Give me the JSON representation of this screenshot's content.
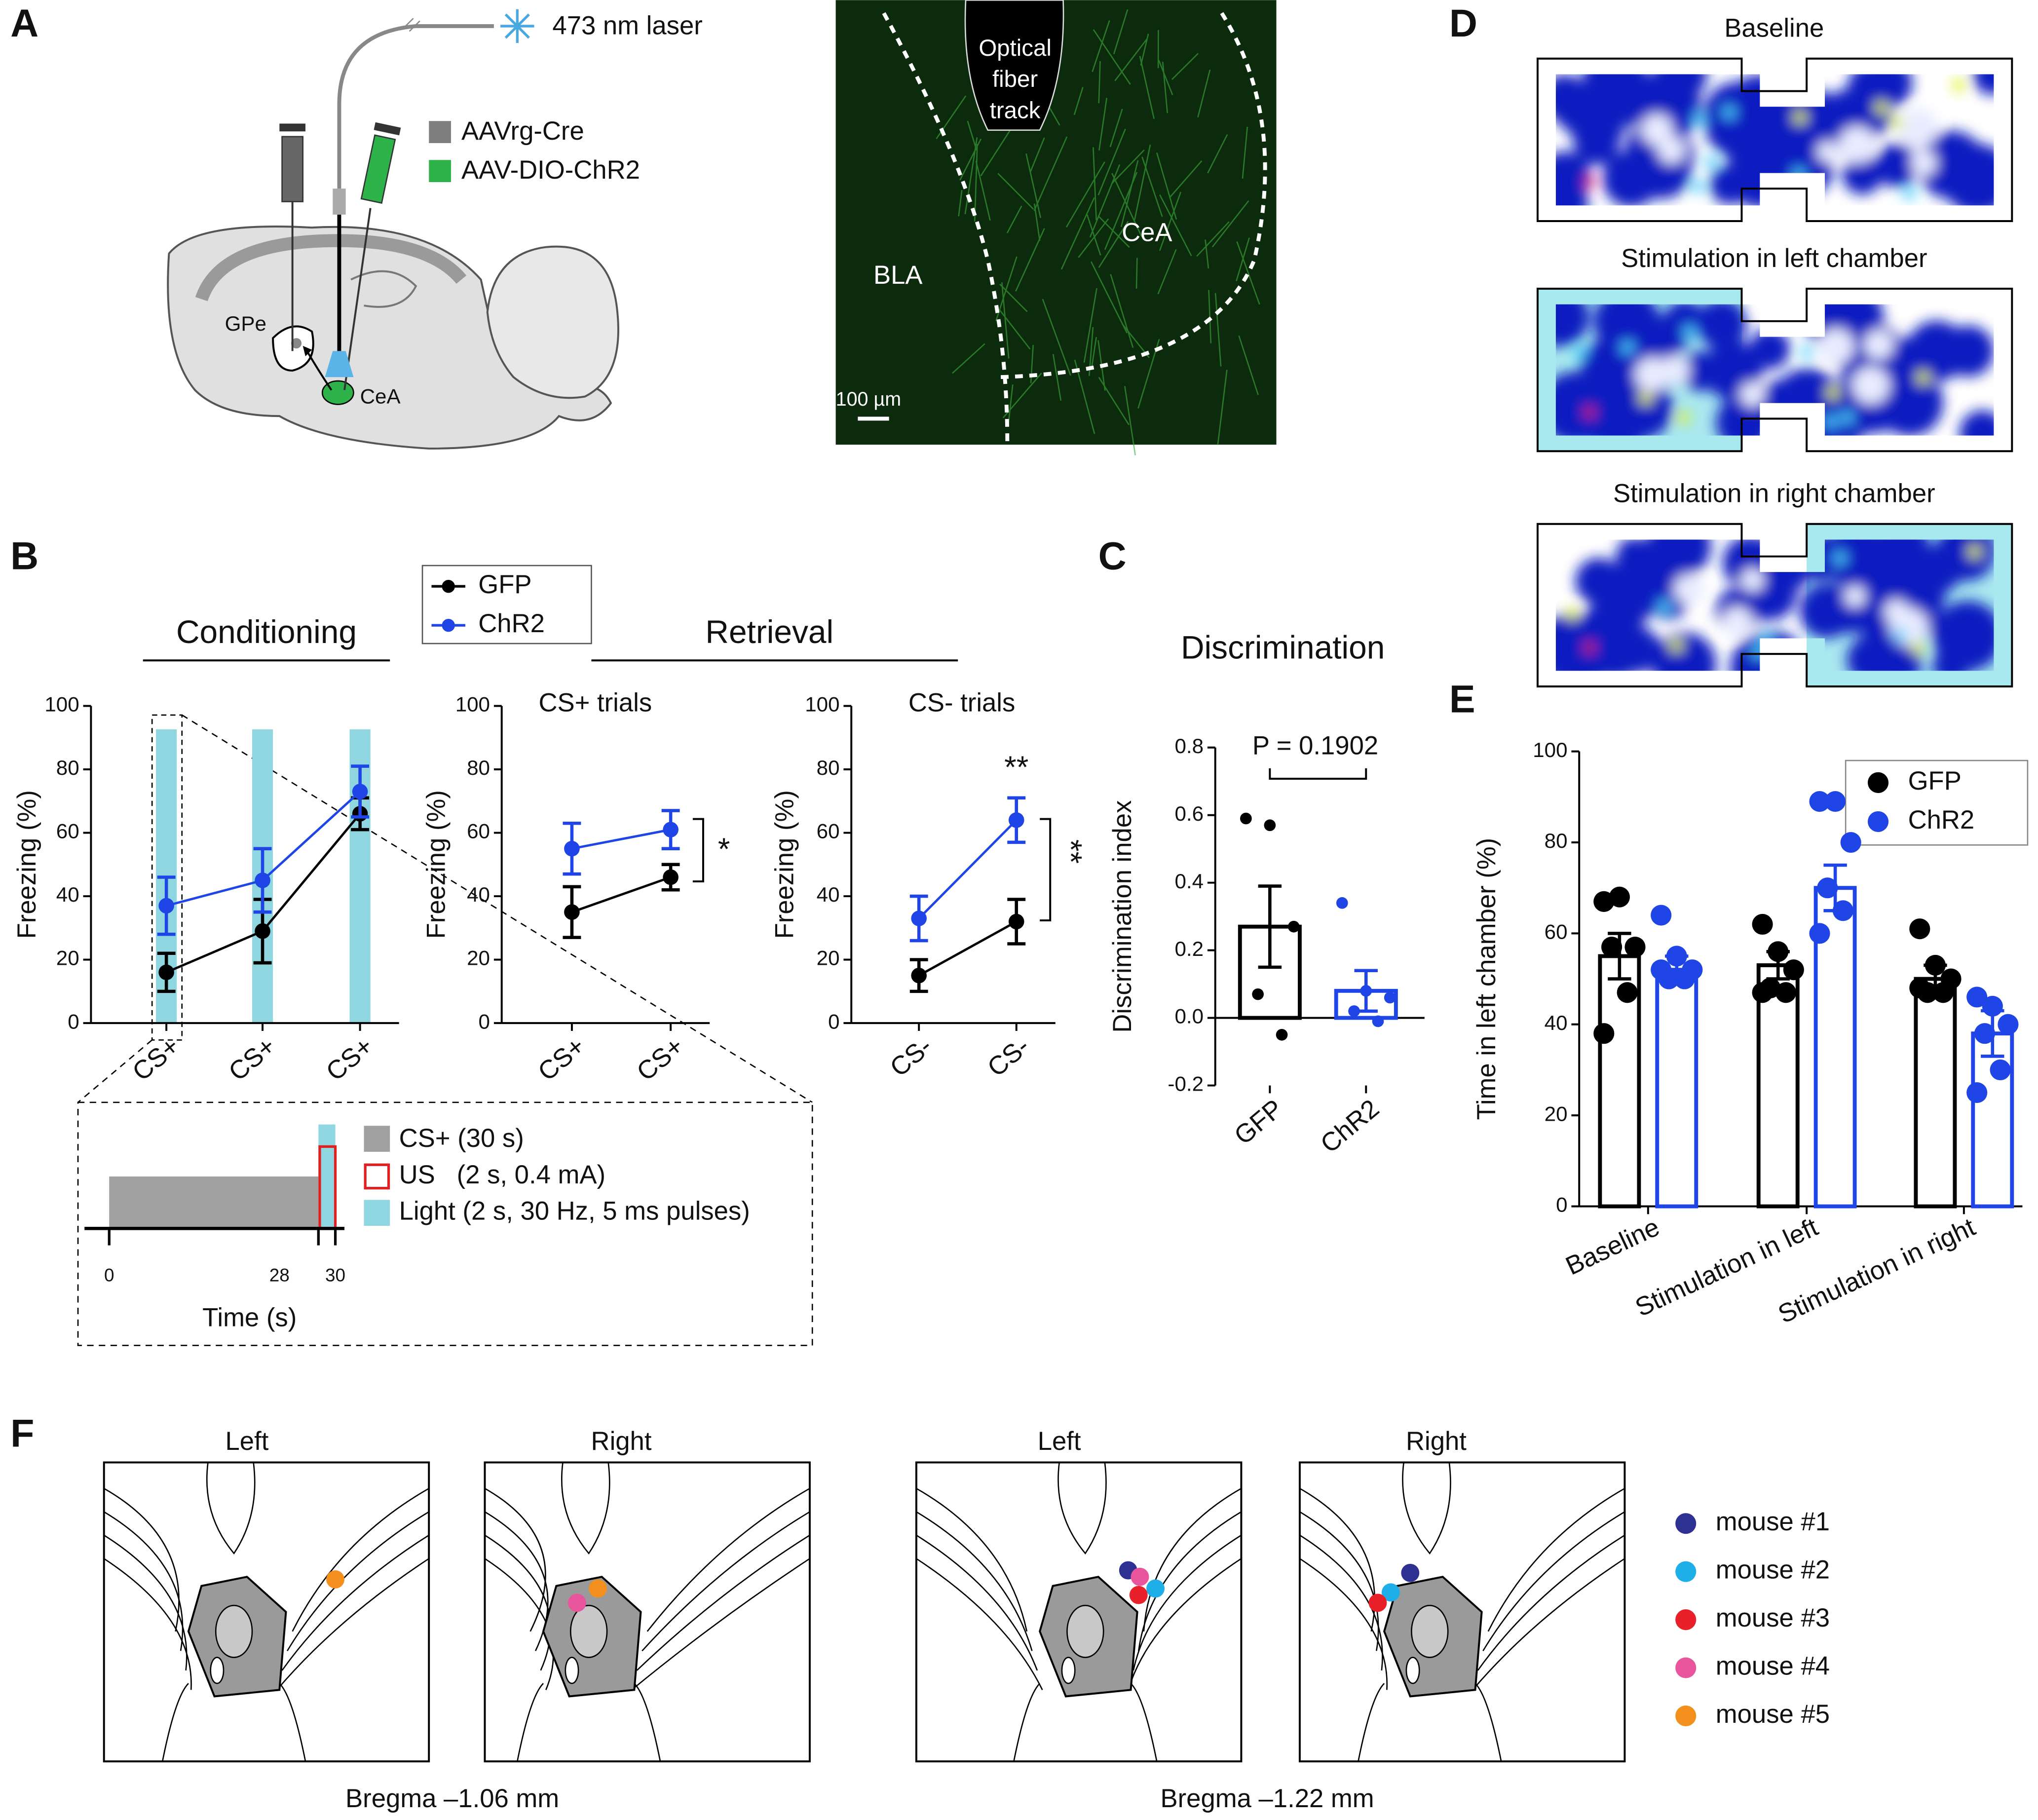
{
  "panel_letters": [
    "A",
    "B",
    "C",
    "D",
    "E",
    "F"
  ],
  "schematic": {
    "laser": "473 nm laser",
    "virus": [
      "AAVrg-Cre",
      "AAV-DIO-ChR2"
    ],
    "virus_colors": [
      "#7f7f7f",
      "#2db34a"
    ],
    "regions": [
      "GPe",
      "CeA"
    ]
  },
  "histology": {
    "fiber": [
      "Optical",
      "fiber",
      "track"
    ],
    "regions": [
      "BLA",
      "CeA"
    ],
    "scale_bar": "100 µm"
  },
  "retrieval_label": "Retrieval",
  "protocol": {
    "items": [
      "CS+ (30 s)",
      "US   (2 s, 0.4 mA)",
      "Light (2 s, 30 Hz, 5 ms pulses)"
    ],
    "ticks": [
      "0",
      "28",
      "30"
    ],
    "xlabel": "Time (s)"
  },
  "heatmaps": [
    "Baseline",
    "Stimulation in left chamber",
    "Stimulation in right chamber"
  ],
  "placements": {
    "sections": [
      {
        "sides": [
          "Left",
          "Right"
        ],
        "bregma": "Bregma –1.06 mm"
      },
      {
        "sides": [
          "Left",
          "Right"
        ],
        "bregma": "Bregma –1.22 mm"
      }
    ],
    "legend": [
      {
        "name": "mouse #1",
        "color": "#2e3192"
      },
      {
        "name": "mouse #2",
        "color": "#1eaee8"
      },
      {
        "name": "mouse #3",
        "color": "#e8202a"
      },
      {
        "name": "mouse #4",
        "color": "#e8559c"
      },
      {
        "name": "mouse #5",
        "color": "#f3901d"
      }
    ]
  },
  "chart_data": [
    {
      "type": "line",
      "title": "Conditioning",
      "ylabel": "Freezing (%)",
      "categories": [
        "CS+",
        "CS+",
        "CS+"
      ],
      "ylim": [
        0,
        100
      ],
      "yticks": [
        0,
        20,
        40,
        60,
        80,
        100
      ],
      "series": [
        {
          "name": "GFP",
          "color": "#000000",
          "values": [
            16,
            29,
            66
          ],
          "errors": [
            6,
            10,
            5
          ]
        },
        {
          "name": "ChR2",
          "color": "#1f45e6",
          "values": [
            37,
            45,
            73
          ],
          "errors": [
            9,
            10,
            8
          ]
        }
      ]
    },
    {
      "type": "line",
      "title": "CS+ trials",
      "ylabel": "Freezing (%)",
      "categories": [
        "CS+",
        "CS+"
      ],
      "ylim": [
        0,
        100
      ],
      "yticks": [
        0,
        20,
        40,
        60,
        80,
        100
      ],
      "annotations": [
        "*"
      ],
      "series": [
        {
          "color": "#000000",
          "values": [
            35,
            46
          ],
          "errors": [
            8,
            4
          ]
        },
        {
          "color": "#1f45e6",
          "values": [
            55,
            61
          ],
          "errors": [
            8,
            6
          ]
        }
      ]
    },
    {
      "type": "line",
      "title": "CS- trials",
      "ylabel": "Freezing (%)",
      "categories": [
        "CS-",
        "CS-"
      ],
      "ylim": [
        0,
        100
      ],
      "yticks": [
        0,
        20,
        40,
        60,
        80,
        100
      ],
      "annotations": [
        "**",
        "**"
      ],
      "series": [
        {
          "color": "#000000",
          "values": [
            15,
            32
          ],
          "errors": [
            5,
            7
          ]
        },
        {
          "color": "#1f45e6",
          "values": [
            33,
            64
          ],
          "errors": [
            7,
            7
          ]
        }
      ]
    },
    {
      "type": "bar",
      "title": "Discrimination",
      "ylabel": "Discrimination index",
      "categories": [
        "GFP",
        "ChR2"
      ],
      "colors": [
        "#000000",
        "#1f45e6"
      ],
      "values": [
        0.27,
        0.08
      ],
      "errors": [
        0.12,
        0.06
      ],
      "points": [
        [
          0.59,
          0.57,
          0.27,
          0.07,
          -0.05
        ],
        [
          0.34,
          0.08,
          0.06,
          0.02,
          -0.01
        ]
      ],
      "ylim": [
        -0.2,
        0.8
      ],
      "yticks": [
        -0.2,
        {
          "value": 0,
          "label": "0.0"
        },
        0.2,
        0.4,
        0.6,
        0.8
      ],
      "annotations": [
        "P = 0.1902"
      ]
    },
    {
      "type": "bar",
      "ylabel": "Time in left chamber (%)",
      "categories": [
        "Baseline",
        "Stimulation in left",
        "Stimulation in right"
      ],
      "ylim": [
        0,
        100
      ],
      "yticks": [
        0,
        20,
        40,
        60,
        80,
        100
      ],
      "legend": "upper right",
      "series": [
        {
          "name": "GFP",
          "color": "#000000",
          "values": [
            55,
            53,
            50
          ],
          "errors": [
            5,
            3,
            3
          ],
          "points": [
            [
              67,
              68,
              57,
              57,
              47,
              38
            ],
            [
              62,
              56,
              52,
              48,
              47,
              47
            ],
            [
              61,
              53,
              50,
              47,
              47,
              48
            ]
          ]
        },
        {
          "name": "ChR2",
          "color": "#1f45e6",
          "values": [
            52,
            70,
            38
          ],
          "errors": [
            3,
            5,
            5
          ],
          "points": [
            [
              64,
              55,
              52,
              50,
              50,
              52
            ],
            [
              89,
              89,
              80,
              70,
              65,
              60
            ],
            [
              46,
              44,
              40,
              38,
              30,
              25
            ]
          ]
        }
      ]
    }
  ]
}
